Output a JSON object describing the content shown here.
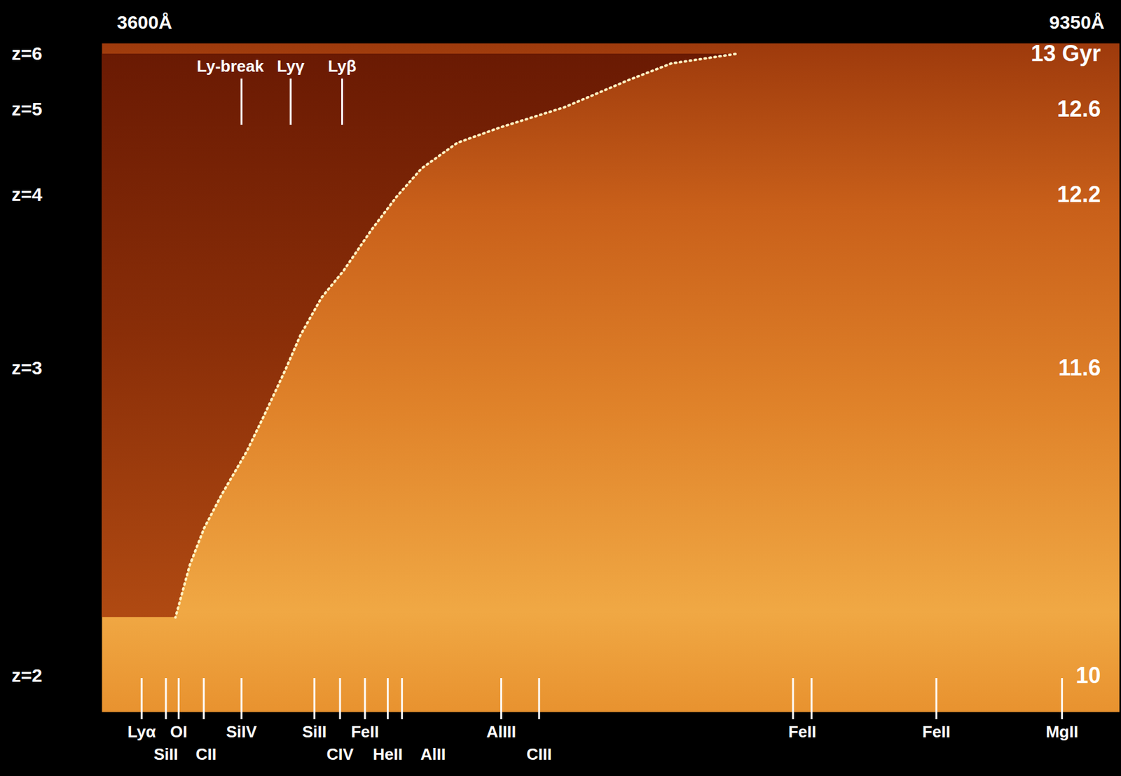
{
  "chart_data": {
    "type": "spectra",
    "xlim": [
      3600,
      9350
    ],
    "xticks": [
      {
        "value": 3600,
        "label": "3600Å"
      },
      {
        "value": 9350,
        "label": "9350Å"
      }
    ],
    "ylim": [
      1.88,
      6.19
    ],
    "yticks": [
      {
        "value": 2,
        "label": "z=2"
      },
      {
        "value": 3,
        "label": "z=3"
      },
      {
        "value": 4,
        "label": "z=4"
      },
      {
        "value": 5,
        "label": "z=5"
      },
      {
        "value": 6,
        "label": "z=6"
      }
    ],
    "x": [
      7180,
      6818,
      6576,
      6213,
      5850,
      5608,
      5406,
      5265,
      5124,
      4963,
      4842,
      4721,
      4640,
      4519,
      4418,
      4277,
      4177,
      4096,
      4015
    ],
    "values": [
      6.0,
      5.83,
      5.53,
      5.04,
      4.79,
      4.61,
      4.31,
      3.99,
      3.8,
      3.56,
      3.41,
      3.19,
      3.0,
      2.85,
      2.73,
      2.59,
      2.48,
      2.36,
      2.19
    ],
    "color": "#fff3c4",
    "line_style": "dotted",
    "age_labels": [
      {
        "z": 6,
        "value": 13,
        "label": "13 Gyr"
      },
      {
        "z": 5,
        "value": 12.6
      },
      {
        "z": 4,
        "value": 12.2
      },
      {
        "z": 3,
        "value": 11.6
      },
      {
        "z": 2,
        "value": 10
      }
    ],
    "lines_top": [
      {
        "label": "Ly-break",
        "x": 4390
      },
      {
        "label": "Lyγ",
        "x": 4668
      },
      {
        "label": "Lyβ",
        "x": 4959
      }
    ],
    "lines_bottom": [
      {
        "label": "Lyα",
        "x": 3826
      },
      {
        "label": "SiII",
        "x": 3963
      },
      {
        "label": "OI",
        "x": 4035
      },
      {
        "label": "CII",
        "x": 4177
      },
      {
        "label": "SiIV",
        "x": 4390
      },
      {
        "label": "SiII",
        "x": 4802
      },
      {
        "label": "CIV",
        "x": 4947
      },
      {
        "label": "FeII",
        "x": 5088
      },
      {
        "label": "HeII",
        "x": 5217
      },
      {
        "label": "AlII",
        "x": 5297
      },
      {
        "label": "AlIII",
        "x": 5858
      },
      {
        "label": "CIII",
        "x": 6072
      },
      {
        "label": "FeII",
        "x": [
          7507,
          7612
        ]
      },
      {
        "label": "FeII",
        "x": 8317
      },
      {
        "label": "MgII",
        "x": 9027
      }
    ]
  }
}
